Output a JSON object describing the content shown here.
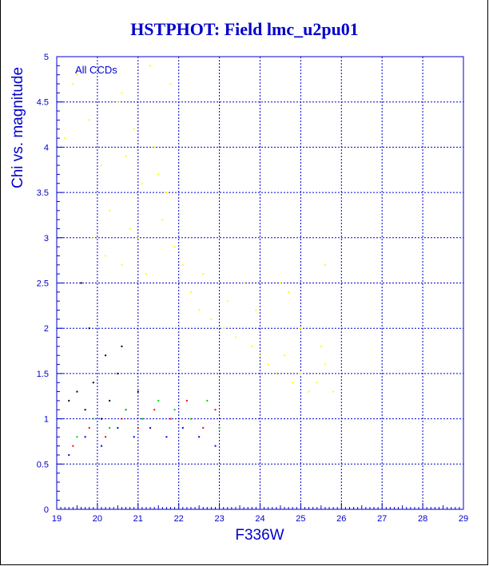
{
  "chart_data": {
    "type": "scatter",
    "title": "HSTPHOT: Field lmc_u2pu01",
    "xlabel": "F336W",
    "ylabel": "Chi vs. magnitude",
    "annotation": "All CCDs",
    "xlim": [
      19,
      29
    ],
    "ylim": [
      0,
      5
    ],
    "xticks": [
      "19",
      "20",
      "21",
      "22",
      "23",
      "24",
      "25",
      "26",
      "27",
      "28",
      "29"
    ],
    "yticks": [
      "0",
      "0.5",
      "1",
      "1.5",
      "2",
      "2.5",
      "3",
      "3.5",
      "4",
      "4.5",
      "5"
    ],
    "grid": true,
    "colors": {
      "axis": "#0000cc",
      "grid": "#0000cc",
      "yellow": "#ffff00",
      "black": "#000000",
      "red": "#ff0000",
      "green": "#00cc00",
      "blue": "#0000ff"
    },
    "series": [
      {
        "color": "yellow",
        "points": [
          [
            19.4,
            4.7
          ],
          [
            19.5,
            4.8
          ],
          [
            19.2,
            4.1
          ],
          [
            19.8,
            4.3
          ],
          [
            20.1,
            3.8
          ],
          [
            20.3,
            3.3
          ],
          [
            20.5,
            4.5
          ],
          [
            20.6,
            4.6
          ],
          [
            20.7,
            3.9
          ],
          [
            20.9,
            4.2
          ],
          [
            21.1,
            3.6
          ],
          [
            21.3,
            4.9
          ],
          [
            21.4,
            4.0
          ],
          [
            21.5,
            3.7
          ],
          [
            21.6,
            3.2
          ],
          [
            21.8,
            4.7
          ],
          [
            21.0,
            3.0
          ],
          [
            20.2,
            2.8
          ],
          [
            20.6,
            2.7
          ],
          [
            21.2,
            2.6
          ],
          [
            19.9,
            3.0
          ],
          [
            20.8,
            3.1
          ],
          [
            21.7,
            3.5
          ],
          [
            21.9,
            2.9
          ],
          [
            22.1,
            2.7
          ],
          [
            22.3,
            2.4
          ],
          [
            22.5,
            2.2
          ],
          [
            22.8,
            2.1
          ],
          [
            23.1,
            2.0
          ],
          [
            23.4,
            1.9
          ],
          [
            23.6,
            2.5
          ],
          [
            23.8,
            1.8
          ],
          [
            24.0,
            1.7
          ],
          [
            24.2,
            1.6
          ],
          [
            24.4,
            1.5
          ],
          [
            24.6,
            1.7
          ],
          [
            24.8,
            1.4
          ],
          [
            25.0,
            1.5
          ],
          [
            25.2,
            1.3
          ],
          [
            25.4,
            1.4
          ],
          [
            25.6,
            1.6
          ],
          [
            25.8,
            1.3
          ],
          [
            25.5,
            1.8
          ],
          [
            25.0,
            2.0
          ],
          [
            24.5,
            2.5
          ],
          [
            25.6,
            2.7
          ],
          [
            24.7,
            2.4
          ],
          [
            23.9,
            2.2
          ],
          [
            23.2,
            2.3
          ],
          [
            22.6,
            2.6
          ]
        ]
      },
      {
        "color": "black",
        "points": [
          [
            19.3,
            1.2
          ],
          [
            19.5,
            1.3
          ],
          [
            19.7,
            1.1
          ],
          [
            19.9,
            1.4
          ],
          [
            20.1,
            1.0
          ],
          [
            20.3,
            1.2
          ],
          [
            20.5,
            1.5
          ],
          [
            20.7,
            1.1
          ],
          [
            19.6,
            2.5
          ],
          [
            19.8,
            2.0
          ],
          [
            20.2,
            1.7
          ],
          [
            20.6,
            1.8
          ],
          [
            21.0,
            1.3
          ]
        ]
      },
      {
        "color": "red",
        "points": [
          [
            19.4,
            0.7
          ],
          [
            19.8,
            0.9
          ],
          [
            20.2,
            0.8
          ],
          [
            20.6,
            1.0
          ],
          [
            21.0,
            0.9
          ],
          [
            21.4,
            1.1
          ],
          [
            21.8,
            1.0
          ],
          [
            22.2,
            1.2
          ],
          [
            22.6,
            0.9
          ],
          [
            22.9,
            1.1
          ]
        ]
      },
      {
        "color": "green",
        "points": [
          [
            19.5,
            0.8
          ],
          [
            19.9,
            1.0
          ],
          [
            20.3,
            0.9
          ],
          [
            20.7,
            1.1
          ],
          [
            21.1,
            1.0
          ],
          [
            21.5,
            1.2
          ],
          [
            21.9,
            1.1
          ],
          [
            22.3,
            1.0
          ],
          [
            22.7,
            1.2
          ],
          [
            23.0,
            0.9
          ]
        ]
      },
      {
        "color": "blue",
        "points": [
          [
            19.3,
            0.6
          ],
          [
            19.7,
            0.8
          ],
          [
            20.1,
            0.7
          ],
          [
            20.5,
            0.9
          ],
          [
            20.9,
            0.8
          ],
          [
            21.3,
            0.9
          ],
          [
            21.7,
            0.8
          ],
          [
            22.1,
            0.9
          ],
          [
            22.5,
            0.8
          ],
          [
            22.9,
            0.7
          ]
        ]
      }
    ]
  }
}
